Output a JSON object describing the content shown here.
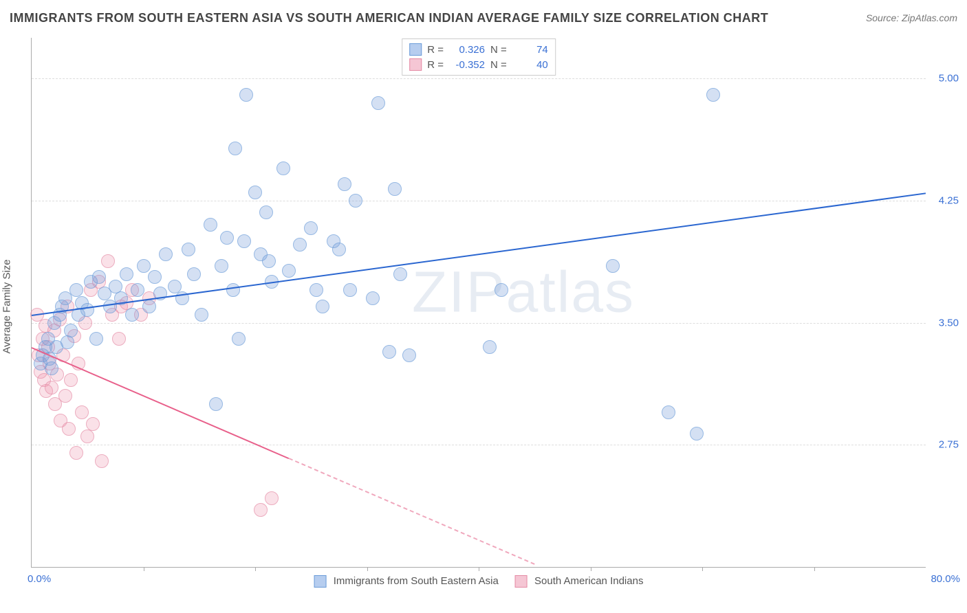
{
  "header": {
    "title": "IMMIGRANTS FROM SOUTH EASTERN ASIA VS SOUTH AMERICAN INDIAN AVERAGE FAMILY SIZE CORRELATION CHART",
    "source": "Source: ZipAtlas.com"
  },
  "chart": {
    "type": "scatter",
    "watermark": "ZIPatlas",
    "ylabel": "Average Family Size",
    "xlim": [
      0,
      80
    ],
    "ylim": [
      2.0,
      5.25
    ],
    "x_tick_positions": [
      10,
      20,
      30,
      40,
      50,
      60,
      70
    ],
    "y_ticks": [
      2.75,
      3.5,
      4.25,
      5.0
    ],
    "y_tick_labels": [
      "2.75",
      "3.50",
      "4.25",
      "5.00"
    ],
    "x_min_label": "0.0%",
    "x_max_label": "80.0%",
    "grid_color": "#dddddd",
    "axis_color": "#aaaaaa",
    "background_color": "#ffffff",
    "series": {
      "a": {
        "label": "Immigrants from South Eastern Asia",
        "color_fill": "rgba(120,160,220,0.45)",
        "color_stroke": "#6a9bd8",
        "swatch_fill": "#b6cdef",
        "swatch_border": "#6a9bd8",
        "R": "0.326",
        "N": "74",
        "trend": {
          "x1": 0,
          "y1": 3.55,
          "x2": 80,
          "y2": 4.3,
          "color": "#2a66d0",
          "dash": false
        },
        "points": [
          [
            0.8,
            3.25
          ],
          [
            1.0,
            3.3
          ],
          [
            1.2,
            3.35
          ],
          [
            1.5,
            3.4
          ],
          [
            1.6,
            3.28
          ],
          [
            1.8,
            3.22
          ],
          [
            2.0,
            3.5
          ],
          [
            2.2,
            3.35
          ],
          [
            2.5,
            3.55
          ],
          [
            2.7,
            3.6
          ],
          [
            3.0,
            3.65
          ],
          [
            3.2,
            3.38
          ],
          [
            3.5,
            3.45
          ],
          [
            4.0,
            3.7
          ],
          [
            4.2,
            3.55
          ],
          [
            4.5,
            3.62
          ],
          [
            5.0,
            3.58
          ],
          [
            5.3,
            3.75
          ],
          [
            5.8,
            3.4
          ],
          [
            6.0,
            3.78
          ],
          [
            6.5,
            3.68
          ],
          [
            7.0,
            3.6
          ],
          [
            7.5,
            3.72
          ],
          [
            8.0,
            3.65
          ],
          [
            8.5,
            3.8
          ],
          [
            9.0,
            3.55
          ],
          [
            9.5,
            3.7
          ],
          [
            10.0,
            3.85
          ],
          [
            10.5,
            3.6
          ],
          [
            11.0,
            3.78
          ],
          [
            11.5,
            3.68
          ],
          [
            12.0,
            3.92
          ],
          [
            12.8,
            3.72
          ],
          [
            13.5,
            3.65
          ],
          [
            14.0,
            3.95
          ],
          [
            14.5,
            3.8
          ],
          [
            15.2,
            3.55
          ],
          [
            16.0,
            4.1
          ],
          [
            17.0,
            3.85
          ],
          [
            17.5,
            4.02
          ],
          [
            18.0,
            3.7
          ],
          [
            18.5,
            3.4
          ],
          [
            19.0,
            4.0
          ],
          [
            19.2,
            4.9
          ],
          [
            20.0,
            4.3
          ],
          [
            20.5,
            3.92
          ],
          [
            21.0,
            4.18
          ],
          [
            21.5,
            3.75
          ],
          [
            22.5,
            4.45
          ],
          [
            23.0,
            3.82
          ],
          [
            24.0,
            3.98
          ],
          [
            25.0,
            4.08
          ],
          [
            25.5,
            3.7
          ],
          [
            26.0,
            3.6
          ],
          [
            27.0,
            4.0
          ],
          [
            27.5,
            3.95
          ],
          [
            28.0,
            4.35
          ],
          [
            28.5,
            3.7
          ],
          [
            29.0,
            4.25
          ],
          [
            30.5,
            3.65
          ],
          [
            31.0,
            4.85
          ],
          [
            32.0,
            3.32
          ],
          [
            32.5,
            4.32
          ],
          [
            33.0,
            3.8
          ],
          [
            33.8,
            3.3
          ],
          [
            41.0,
            3.35
          ],
          [
            42.0,
            3.7
          ],
          [
            52.0,
            3.85
          ],
          [
            57.0,
            2.95
          ],
          [
            59.5,
            2.82
          ],
          [
            61.0,
            4.9
          ],
          [
            16.5,
            3.0
          ],
          [
            18.2,
            4.57
          ],
          [
            21.2,
            3.88
          ]
        ]
      },
      "b": {
        "label": "South American Indians",
        "color_fill": "rgba(240,150,175,0.40)",
        "color_stroke": "#e48aa4",
        "swatch_fill": "#f5c6d4",
        "swatch_border": "#e48aa4",
        "R": "-0.352",
        "N": "40",
        "trend_solid": {
          "x1": 0,
          "y1": 3.35,
          "x2": 23,
          "y2": 2.67,
          "color": "#e85f8a",
          "dash": false
        },
        "trend_dash": {
          "x1": 23,
          "y1": 2.67,
          "x2": 45,
          "y2": 2.02,
          "color": "#f0a8bd",
          "dash": true
        },
        "points": [
          [
            0.5,
            3.55
          ],
          [
            0.6,
            3.3
          ],
          [
            0.8,
            3.2
          ],
          [
            1.0,
            3.4
          ],
          [
            1.1,
            3.15
          ],
          [
            1.2,
            3.48
          ],
          [
            1.3,
            3.08
          ],
          [
            1.5,
            3.35
          ],
          [
            1.6,
            3.25
          ],
          [
            1.8,
            3.1
          ],
          [
            2.0,
            3.45
          ],
          [
            2.1,
            3.0
          ],
          [
            2.3,
            3.18
          ],
          [
            2.5,
            3.52
          ],
          [
            2.6,
            2.9
          ],
          [
            2.8,
            3.3
          ],
          [
            3.0,
            3.05
          ],
          [
            3.2,
            3.6
          ],
          [
            3.3,
            2.85
          ],
          [
            3.5,
            3.15
          ],
          [
            3.8,
            3.42
          ],
          [
            4.0,
            2.7
          ],
          [
            4.2,
            3.25
          ],
          [
            4.5,
            2.95
          ],
          [
            4.8,
            3.5
          ],
          [
            5.0,
            2.8
          ],
          [
            5.3,
            3.7
          ],
          [
            5.5,
            2.88
          ],
          [
            6.0,
            3.75
          ],
          [
            6.3,
            2.65
          ],
          [
            6.8,
            3.88
          ],
          [
            7.2,
            3.55
          ],
          [
            7.8,
            3.4
          ],
          [
            8.0,
            3.6
          ],
          [
            8.5,
            3.62
          ],
          [
            9.0,
            3.7
          ],
          [
            9.8,
            3.55
          ],
          [
            10.5,
            3.65
          ],
          [
            20.5,
            2.35
          ],
          [
            21.5,
            2.42
          ]
        ]
      }
    },
    "legend_top": {
      "R_label": "R =",
      "N_label": "N ="
    }
  }
}
